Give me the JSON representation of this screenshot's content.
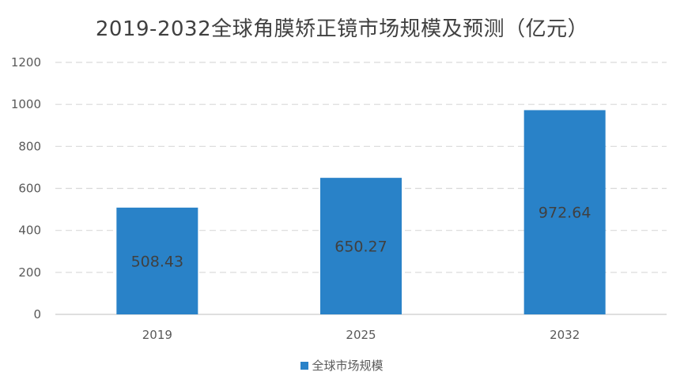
{
  "chart_data": {
    "type": "bar",
    "title": "2019-2032全球角膜矫正镜市场规模及预测（亿元）",
    "categories": [
      "2019",
      "2025",
      "2032"
    ],
    "series": [
      {
        "name": "全球市场规模",
        "values": [
          508.43,
          650.27,
          972.64
        ]
      }
    ],
    "ylim": [
      0,
      1200
    ],
    "yticks": [
      0,
      200,
      400,
      600,
      800,
      1000,
      1200
    ],
    "grid": true,
    "legend": "bottom",
    "colors": {
      "bar": "#2982C8",
      "grid": "#D9D9D9",
      "axis": "#BFBFBF"
    }
  }
}
